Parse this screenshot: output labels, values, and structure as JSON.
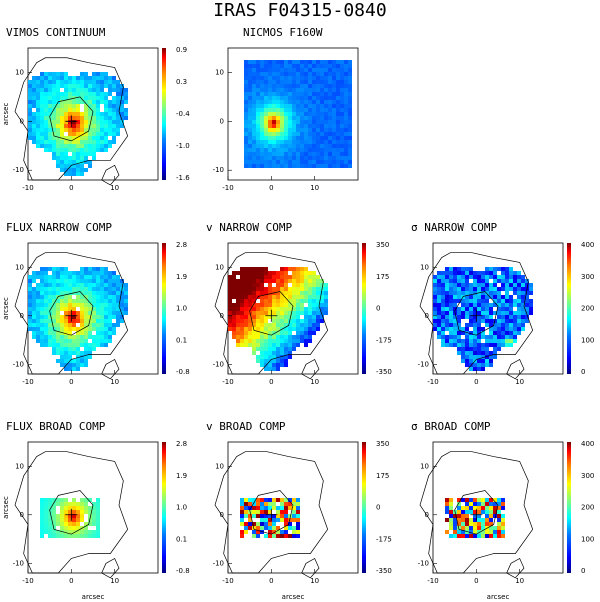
{
  "figure_title": "IRAS F04315-0840",
  "axis_unit_label": "arcsec",
  "colormap": [
    "#00007f",
    "#0000ff",
    "#0080ff",
    "#00ffff",
    "#80ff80",
    "#ffff00",
    "#ff8000",
    "#ff0000",
    "#7f0000"
  ],
  "chart_data": [
    {
      "type": "heatmap",
      "title": "VIMOS CONTINUUM",
      "ylabel": "arcsec",
      "xlabel": "",
      "xticks": [
        "-10",
        "0",
        "10"
      ],
      "yticks": [
        "10",
        "0",
        "-10"
      ],
      "colorbar_ticks": [
        "0.9",
        "0.3",
        "-0.4",
        "-1.0",
        "-1.6"
      ],
      "colorbar_range": [
        -1.6,
        0.9
      ],
      "contours": true
    },
    {
      "type": "heatmap",
      "title": "NICMOS F160W",
      "ylabel": "",
      "xlabel": "",
      "xticks": [
        "-10",
        "0",
        "10"
      ],
      "yticks": [
        "10",
        "0",
        "-10"
      ],
      "colorbar_ticks": [],
      "contours": false
    },
    {
      "type": "heatmap",
      "title": "FLUX NARROW COMP",
      "ylabel": "arcsec",
      "xlabel": "",
      "xticks": [
        "-10",
        "0",
        "10"
      ],
      "yticks": [
        "10",
        "0",
        "-10"
      ],
      "colorbar_ticks": [
        "2.8",
        "1.9",
        "1.0",
        "0.1",
        "-0.8"
      ],
      "colorbar_range": [
        -0.8,
        2.8
      ],
      "contours": true
    },
    {
      "type": "heatmap",
      "title": "v NARROW COMP",
      "ylabel": "",
      "xlabel": "",
      "xticks": [
        "-10",
        "0",
        "10"
      ],
      "yticks": [
        "10",
        "0",
        "-10"
      ],
      "colorbar_ticks": [
        "350",
        "175",
        "0",
        "-175",
        "-350"
      ],
      "colorbar_range": [
        -350,
        350
      ],
      "contours": true
    },
    {
      "type": "heatmap",
      "title": "σ NARROW COMP",
      "ylabel": "",
      "xlabel": "",
      "xticks": [
        "-10",
        "0",
        "10"
      ],
      "yticks": [
        "10",
        "0",
        "-10"
      ],
      "colorbar_ticks": [
        "400",
        "300",
        "200",
        "100",
        "0"
      ],
      "colorbar_range": [
        0,
        400
      ],
      "contours": true
    },
    {
      "type": "heatmap",
      "title": "FLUX BROAD COMP",
      "ylabel": "arcsec",
      "xlabel": "arcsec",
      "xticks": [
        "-10",
        "0",
        "10"
      ],
      "yticks": [
        "10",
        "0",
        "-10"
      ],
      "colorbar_ticks": [
        "2.8",
        "1.9",
        "1.0",
        "0.1",
        "-0.8"
      ],
      "colorbar_range": [
        -0.8,
        2.8
      ],
      "contours": true
    },
    {
      "type": "heatmap",
      "title": "v BROAD COMP",
      "ylabel": "",
      "xlabel": "arcsec",
      "xticks": [
        "-10",
        "0",
        "10"
      ],
      "yticks": [
        "10",
        "0",
        "-10"
      ],
      "colorbar_ticks": [
        "350",
        "175",
        "0",
        "-175",
        "-350"
      ],
      "colorbar_range": [
        -350,
        350
      ],
      "contours": true
    },
    {
      "type": "heatmap",
      "title": "σ BROAD COMP",
      "ylabel": "",
      "xlabel": "arcsec",
      "xticks": [
        "-10",
        "0",
        "10"
      ],
      "yticks": [
        "10",
        "0",
        "-10"
      ],
      "colorbar_ticks": [
        "400",
        "300",
        "200",
        "100",
        "0"
      ],
      "colorbar_range": [
        0,
        400
      ],
      "contours": true
    }
  ]
}
